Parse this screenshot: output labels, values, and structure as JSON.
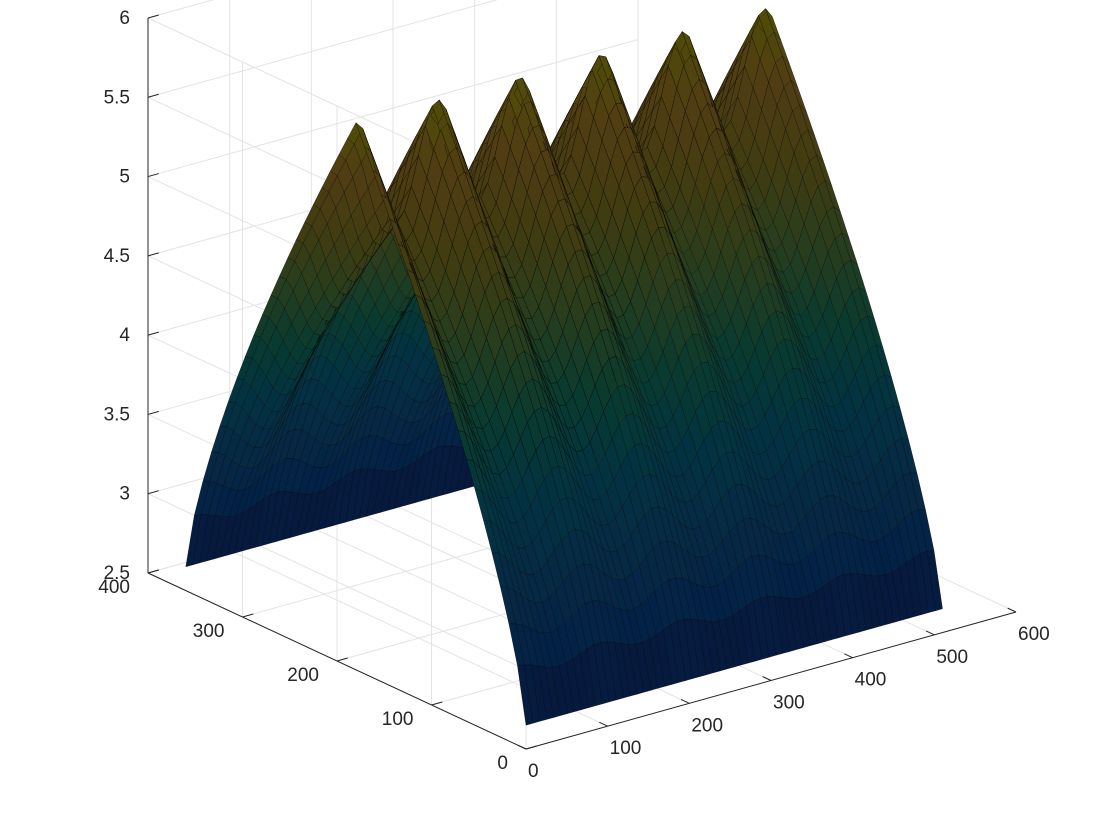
{
  "chart_data": {
    "type": "surface",
    "title": "",
    "xlabel": "",
    "ylabel": "",
    "zlabel": "",
    "grid": true,
    "colormap": "parula",
    "edge_color": "#000000",
    "xlim": [
      0,
      600
    ],
    "ylim": [
      0,
      400
    ],
    "zlim": [
      2.5,
      6
    ],
    "x_ticks": [
      "0",
      "100",
      "200",
      "300",
      "400",
      "500",
      "600"
    ],
    "y_ticks": [
      "0",
      "100",
      "200",
      "300",
      "400"
    ],
    "z_ticks": [
      "2.5",
      "3",
      "3.5",
      "4",
      "4.5",
      "5",
      "5.5",
      "6"
    ],
    "x_range": [
      0,
      510
    ],
    "y_range": [
      0,
      360
    ],
    "surface_model": {
      "description": "tent profile along y (peak at y=180) plus ripples along x",
      "base_z": 2.65,
      "peak_z": 5.6,
      "ripple_amplitude": 0.35,
      "ripple_period": 100,
      "ripple_x_values": [
        0,
        100,
        200,
        300,
        400,
        500
      ]
    }
  }
}
